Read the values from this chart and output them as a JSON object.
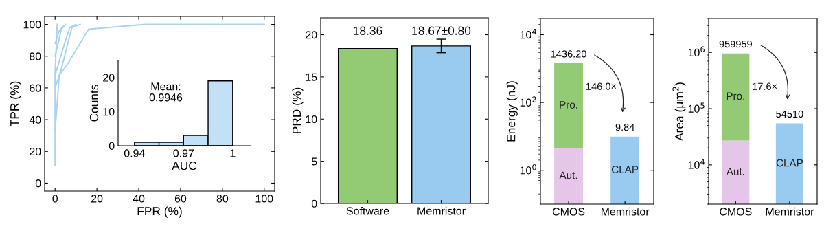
{
  "chart_data": [
    {
      "type": "line",
      "xlabel": "FPR (%)",
      "ylabel": "TPR (%)",
      "xlim": [
        -5,
        105
      ],
      "ylim": [
        -5,
        105
      ],
      "xticks": [
        0,
        20,
        40,
        60,
        80,
        100
      ],
      "yticks": [
        0,
        20,
        40,
        60,
        80,
        100
      ],
      "series": [
        {
          "color": "#a9d3f0",
          "x": [
            0,
            0,
            1
          ],
          "values": [
            11,
            70,
            100
          ]
        },
        {
          "color": "#a9d3f0",
          "x": [
            0,
            2,
            6,
            16,
            43,
            100
          ],
          "values": [
            33,
            68,
            75,
            97,
            100,
            100
          ]
        },
        {
          "color": "#a9d3f0",
          "x": [
            0,
            3,
            8,
            12
          ],
          "values": [
            60,
            72,
            98,
            100
          ]
        },
        {
          "color": "#a9d3f0",
          "x": [
            0,
            5,
            7,
            10
          ],
          "values": [
            68,
            90,
            98,
            100
          ]
        },
        {
          "color": "#a9d3f0",
          "x": [
            0,
            3,
            5
          ],
          "values": [
            80,
            97,
            100
          ]
        },
        {
          "color": "#a9d3f0",
          "x": [
            0,
            2,
            4
          ],
          "values": [
            88,
            96,
            99
          ]
        }
      ]
    },
    {
      "type": "histogram",
      "xlabel": "AUC",
      "ylabel": "Counts",
      "bins": [
        0.94,
        0.955,
        0.97,
        0.985,
        1.0
      ],
      "values": [
        1,
        1,
        3,
        19
      ],
      "color": "#c2e0f6",
      "xlim": [
        0.93,
        1.011
      ],
      "ylim": [
        0,
        25
      ],
      "xticks": [
        0.94,
        0.97,
        1
      ],
      "yticks": [
        0,
        10,
        20
      ],
      "annotations": [
        "Mean:\n0.9946"
      ]
    },
    {
      "type": "bar",
      "ylabel": "PRD (%)",
      "categories": [
        "Software",
        "Memristor"
      ],
      "values": [
        18.36,
        18.67
      ],
      "colors": [
        "#92cb74",
        "#98cbef"
      ],
      "errors": [
        null,
        0.8
      ],
      "value_labels": [
        "18.36",
        "18.67±0.80"
      ],
      "ylim": [
        0,
        22
      ],
      "yticks": [
        0,
        5,
        10,
        15,
        20
      ]
    },
    {
      "type": "bar",
      "stacked": true,
      "log": true,
      "ylabel": "Energy (nJ)",
      "categories": [
        "CMOS",
        "Memristor"
      ],
      "series": [
        {
          "name": "Aut.",
          "color": "#e6c6e8",
          "values": [
            4.5,
            null
          ]
        },
        {
          "name": "Pro.",
          "color": "#92cb74",
          "values": [
            1431.7,
            null
          ]
        },
        {
          "name": "CLAP",
          "color": "#98cbef",
          "values": [
            null,
            9.84
          ]
        }
      ],
      "totals": [
        "1436.20",
        "9.84"
      ],
      "annotations": [
        "146.0×"
      ],
      "ylim": [
        0.1,
        30000
      ],
      "yticks": [
        {
          "value": 1,
          "label": "10$^{0}$"
        },
        {
          "value": 100,
          "label": "10$^{2}$"
        },
        {
          "value": 10000,
          "label": "10$^{4}$"
        }
      ]
    },
    {
      "type": "bar",
      "stacked": true,
      "log": true,
      "ylabel": "Area (μm$^{2}$)",
      "categories": [
        "CMOS",
        "Memristor"
      ],
      "series": [
        {
          "name": "Aut.",
          "color": "#e6c6e8",
          "values": [
            27000,
            null
          ]
        },
        {
          "name": "Pro.",
          "color": "#92cb74",
          "values": [
            932959,
            null
          ]
        },
        {
          "name": "CLAP",
          "color": "#98cbef",
          "values": [
            null,
            54510
          ]
        }
      ],
      "totals": [
        "959959",
        "54510"
      ],
      "annotations": [
        "17.6×"
      ],
      "ylim": [
        2000,
        4000000
      ],
      "yticks": [
        {
          "value": 10000,
          "label": "10$^{4}$"
        },
        {
          "value": 100000,
          "label": "10$^{5}$"
        },
        {
          "value": 1000000,
          "label": "10$^{6}$"
        }
      ]
    }
  ]
}
